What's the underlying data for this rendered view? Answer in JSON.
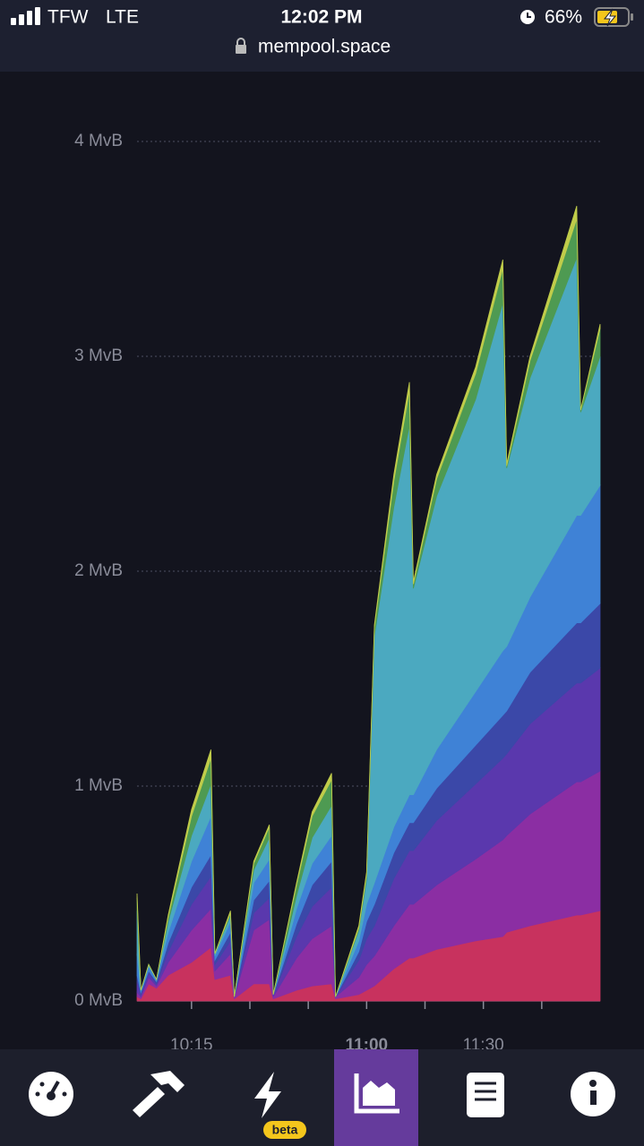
{
  "status_bar": {
    "carrier": "TFW",
    "network": "LTE",
    "time": "12:02 PM",
    "battery": "66%"
  },
  "address_bar": {
    "url": "mempool.space"
  },
  "chart_data": {
    "type": "stacked-area",
    "x": [
      "10:01",
      "10:02",
      "10:04",
      "10:06",
      "10:09",
      "10:15",
      "10:20",
      "10:21",
      "10:25",
      "10:26",
      "10:31",
      "10:35",
      "10:36",
      "10:42",
      "10:46",
      "10:51",
      "10:52",
      "10:58",
      "11:00",
      "11:02",
      "11:07",
      "11:11",
      "11:12",
      "11:18",
      "11:28",
      "11:35",
      "11:36",
      "11:42",
      "11:54",
      "11:55",
      "12:00"
    ],
    "xlim": [
      "10:01",
      "12:00"
    ],
    "xticks": [
      {
        "value": "10:15",
        "label": "10:15"
      },
      {
        "value": "10:30",
        "label": null
      },
      {
        "value": "10:45",
        "label": null
      },
      {
        "value": "11:00",
        "label": "11:00"
      },
      {
        "value": "11:15",
        "label": null
      },
      {
        "value": "11:30",
        "label": "11:30"
      },
      {
        "value": "11:45",
        "label": null
      }
    ],
    "ylim": [
      0,
      4
    ],
    "yticks": [
      {
        "value": 0,
        "label": "0 MvB"
      },
      {
        "value": 1,
        "label": "1 MvB"
      },
      {
        "value": 2,
        "label": "2 MvB"
      },
      {
        "value": 3,
        "label": "3 MvB"
      },
      {
        "value": 4,
        "label": "4 MvB"
      }
    ],
    "grid": true,
    "series": [
      {
        "color": "#c8325e",
        "values": [
          0.02,
          0.01,
          0.08,
          0.06,
          0.12,
          0.18,
          0.25,
          0.1,
          0.12,
          0.01,
          0.08,
          0.08,
          0.01,
          0.05,
          0.07,
          0.08,
          0.01,
          0.03,
          0.05,
          0.07,
          0.15,
          0.2,
          0.2,
          0.24,
          0.28,
          0.3,
          0.32,
          0.35,
          0.4,
          0.4,
          0.42
        ]
      },
      {
        "color": "#8b2ea3",
        "values": [
          0.02,
          0.01,
          0.03,
          0.01,
          0.06,
          0.15,
          0.18,
          0.04,
          0.1,
          0.01,
          0.25,
          0.3,
          0.01,
          0.15,
          0.22,
          0.27,
          0.01,
          0.08,
          0.12,
          0.14,
          0.2,
          0.25,
          0.25,
          0.3,
          0.38,
          0.45,
          0.45,
          0.52,
          0.62,
          0.62,
          0.65
        ]
      },
      {
        "color": "#5a38ad",
        "values": [
          0.05,
          0.01,
          0.02,
          0.01,
          0.05,
          0.12,
          0.15,
          0.03,
          0.06,
          0,
          0.08,
          0.1,
          0.01,
          0.1,
          0.15,
          0.18,
          0,
          0.08,
          0.12,
          0.14,
          0.22,
          0.25,
          0.25,
          0.3,
          0.35,
          0.38,
          0.38,
          0.42,
          0.46,
          0.46,
          0.48
        ]
      },
      {
        "color": "#3b48a8",
        "values": [
          0.03,
          0.01,
          0.01,
          0.01,
          0.04,
          0.08,
          0.1,
          0.02,
          0.04,
          0,
          0.06,
          0.08,
          0,
          0.06,
          0.1,
          0.12,
          0,
          0.04,
          0.08,
          0.1,
          0.12,
          0.13,
          0.13,
          0.15,
          0.18,
          0.2,
          0.2,
          0.24,
          0.28,
          0.28,
          0.3
        ]
      },
      {
        "color": "#3f82d6",
        "values": [
          0.1,
          0.01,
          0.02,
          0.01,
          0.05,
          0.12,
          0.18,
          0.02,
          0.05,
          0,
          0.08,
          0.1,
          0,
          0.07,
          0.1,
          0.12,
          0,
          0.05,
          0.08,
          0.1,
          0.12,
          0.13,
          0.13,
          0.18,
          0.25,
          0.3,
          0.3,
          0.35,
          0.5,
          0.5,
          0.55
        ]
      },
      {
        "color": "#4ba9c0",
        "values": [
          0.2,
          0,
          0.01,
          0,
          0.05,
          0.12,
          0.15,
          0.01,
          0.03,
          0,
          0.06,
          0.1,
          0,
          0.06,
          0.12,
          0.14,
          0,
          0.05,
          0.12,
          1.15,
          1.49,
          1.72,
          0.96,
          1.18,
          1.36,
          1.62,
          0.83,
          1.02,
          1.2,
          0.48,
          0.6
        ]
      },
      {
        "color": "#4e9a52",
        "values": [
          0.06,
          0,
          0,
          0,
          0.02,
          0.09,
          0.12,
          0,
          0.01,
          0,
          0.03,
          0.05,
          0,
          0.05,
          0.1,
          0.12,
          0,
          0.01,
          0.02,
          0.04,
          0.12,
          0.16,
          0.02,
          0.08,
          0.12,
          0.16,
          0.01,
          0.08,
          0.18,
          0.01,
          0.13
        ]
      },
      {
        "color": "#c0cc4a",
        "values": [
          0.02,
          0,
          0,
          0,
          0.01,
          0.03,
          0.04,
          0,
          0.01,
          0,
          0.01,
          0.01,
          0,
          0.01,
          0.02,
          0.03,
          0,
          0.01,
          0.01,
          0.01,
          0.03,
          0.04,
          0.01,
          0.02,
          0.03,
          0.04,
          0.01,
          0.02,
          0.06,
          0,
          0.02
        ]
      }
    ]
  },
  "nav": {
    "badge": "beta"
  }
}
